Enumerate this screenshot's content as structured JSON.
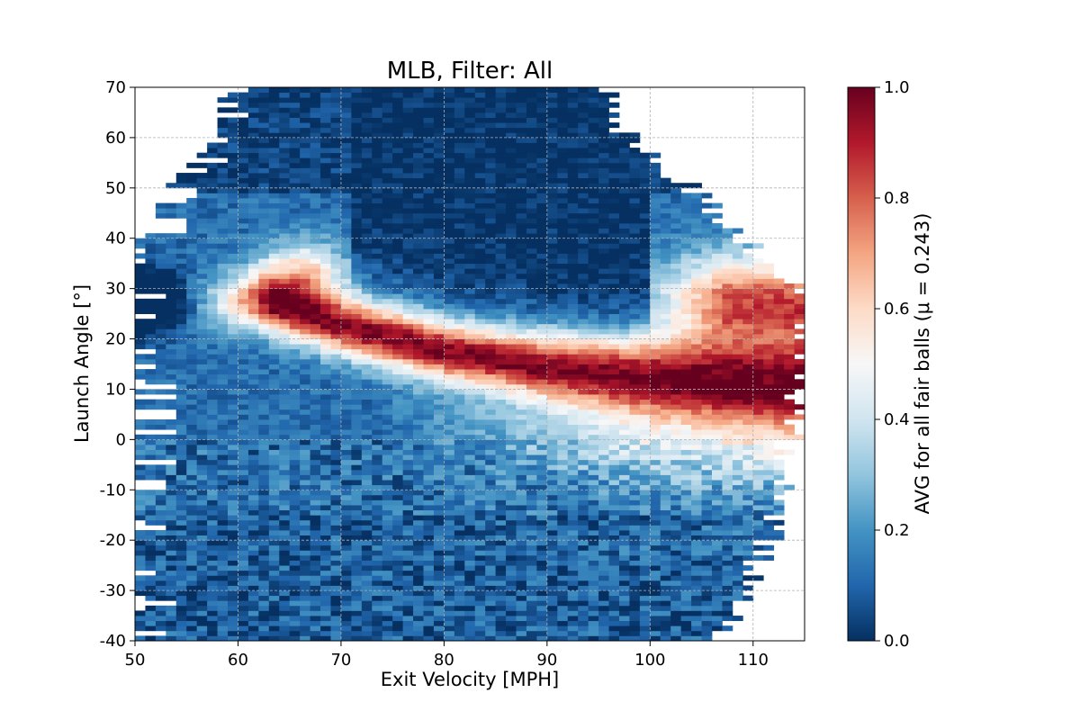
{
  "chart_data": {
    "type": "heatmap",
    "title": "MLB, Filter: All",
    "xlabel": "Exit Velocity [MPH]",
    "ylabel": "Launch Angle [°]",
    "xlim": [
      50,
      115
    ],
    "ylim": [
      -40,
      70
    ],
    "x_ticks": [
      "50",
      "60",
      "70",
      "80",
      "90",
      "100",
      "110"
    ],
    "y_ticks": [
      "-40",
      "-30",
      "-20",
      "-10",
      "0",
      "10",
      "20",
      "30",
      "40",
      "50",
      "60",
      "70"
    ],
    "grid": true,
    "colormap": "RdBu_r",
    "colorbar": {
      "label": "AVG for all fair balls (μ = 0.243)",
      "range": [
        0.0,
        1.0
      ],
      "ticks": [
        "0.0",
        "0.2",
        "0.4",
        "0.6",
        "0.8",
        "1.0"
      ]
    },
    "bin_size": {
      "x": 1,
      "y": 1
    },
    "description_of_values": "Batting average per (exit velocity, launch angle) bin; values estimated from colors",
    "features": [
      {
        "name": "main-ridge",
        "x": [
          62,
          70,
          80,
          90,
          100,
          110,
          114
        ],
        "y": [
          27,
          22,
          17,
          14,
          12,
          11,
          11
        ],
        "peak_value": 0.97
      },
      {
        "name": "barrel-zone",
        "x": [
          102,
          114
        ],
        "y": [
          15,
          36
        ],
        "peak_value": 0.92
      },
      {
        "name": "weak-contact-bump",
        "x": [
          60,
          71
        ],
        "y": [
          25,
          40
        ],
        "peak_value": 0.8
      }
    ]
  }
}
